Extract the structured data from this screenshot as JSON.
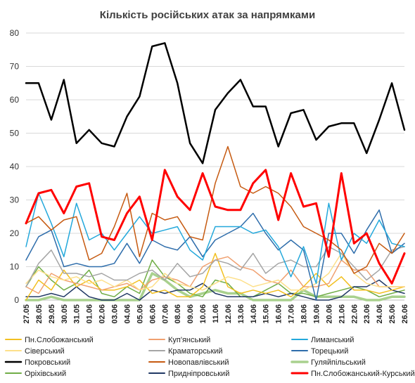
{
  "chart_data": {
    "type": "line",
    "title": "Кількість російських атак за напрямками",
    "ylim": [
      0,
      80
    ],
    "yticks": [
      0,
      10,
      20,
      30,
      40,
      50,
      60,
      70,
      80
    ],
    "grid": true,
    "legend_position": "bottom",
    "x": [
      "27.05",
      "28.05",
      "29.05",
      "30.05",
      "31.05",
      "01.06",
      "02.06",
      "03.06",
      "04.06",
      "05.06",
      "06.06",
      "07.06",
      "08.06",
      "09.06",
      "10.06",
      "11.06",
      "12.06",
      "13.06",
      "14.06",
      "15.06",
      "16.06",
      "17.06",
      "18.06",
      "19.06",
      "20.06",
      "21.06",
      "22.06",
      "23.06",
      "24.06",
      "25.06",
      "26.06"
    ],
    "xtick_labels": [
      "27.05",
      "28.05",
      "29.05",
      "30.05",
      "31.05",
      "01.06",
      "02.06",
      "03.06",
      "04.06",
      "05.06",
      "06.06",
      "07.06",
      "08.06",
      "09.06",
      "10.06",
      "11.06",
      "12.06",
      "13.06",
      "14.06",
      "15.06",
      "16.06",
      "17.06",
      "18.06",
      "19.06",
      "20.06",
      "21.06",
      "22.06",
      "23.06",
      "24.06",
      "25.06",
      "26.06"
    ],
    "series": [
      {
        "name": "Пн.Слобожанський",
        "color": "#f2c021",
        "width": 1.5,
        "values": [
          0,
          6,
          3,
          9,
          4,
          6,
          3,
          3,
          4,
          6,
          2,
          3,
          1,
          1,
          4,
          14,
          4,
          2,
          3,
          2,
          3,
          1,
          4,
          8,
          4,
          7,
          3,
          3,
          2,
          3,
          4
        ]
      },
      {
        "name": "Куп'янський",
        "color": "#f0a070",
        "width": 1.5,
        "values": [
          4,
          2,
          8,
          6,
          5,
          4,
          3,
          4,
          5,
          3,
          6,
          7,
          6,
          4,
          10,
          12,
          13,
          10,
          9,
          6,
          5,
          9,
          4,
          4,
          5,
          12,
          9,
          9,
          4,
          4,
          4
        ]
      },
      {
        "name": "Лиманський",
        "color": "#23a8db",
        "width": 1.5,
        "values": [
          16,
          32,
          23,
          13,
          29,
          18,
          20,
          15,
          20,
          25,
          20,
          21,
          22,
          15,
          12,
          22,
          22,
          22,
          20,
          21,
          16,
          7,
          16,
          5,
          29,
          12,
          20,
          17,
          24,
          17,
          16
        ]
      },
      {
        "name": "Сіверський",
        "color": "#fde08a",
        "width": 1.5,
        "values": [
          5,
          9,
          7,
          6,
          7,
          5,
          6,
          4,
          6,
          3,
          4,
          8,
          5,
          4,
          3,
          5,
          7,
          6,
          4,
          5,
          6,
          3,
          3,
          5,
          8,
          14,
          8,
          5,
          4,
          4,
          4
        ]
      },
      {
        "name": "Краматорський",
        "color": "#a5a5a5",
        "width": 1.5,
        "values": [
          4,
          11,
          15,
          8,
          8,
          7,
          8,
          6,
          6,
          8,
          9,
          6,
          11,
          7,
          8,
          12,
          11,
          9,
          14,
          8,
          11,
          12,
          10,
          10,
          16,
          14,
          10,
          6,
          9,
          15,
          16
        ]
      },
      {
        "name": "Торецький",
        "color": "#2e6dab",
        "width": 1.5,
        "values": [
          12,
          19,
          21,
          10,
          11,
          10,
          10,
          11,
          17,
          11,
          18,
          16,
          15,
          19,
          13,
          18,
          20,
          22,
          26,
          20,
          15,
          18,
          15,
          0,
          20,
          20,
          14,
          21,
          27,
          14,
          17
        ]
      },
      {
        "name": "Покровський",
        "color": "#000000",
        "width": 2.5,
        "values": [
          65,
          65,
          54,
          66,
          47,
          51,
          47,
          46,
          55,
          61,
          76,
          77,
          65,
          47,
          41,
          57,
          62,
          66,
          58,
          58,
          46,
          56,
          57,
          48,
          52,
          53,
          53,
          44,
          54,
          65,
          51
        ]
      },
      {
        "name": "Новопавлівський",
        "color": "#c65a11",
        "width": 1.5,
        "values": [
          23,
          25,
          21,
          24,
          25,
          12,
          14,
          22,
          32,
          13,
          26,
          24,
          25,
          19,
          18,
          35,
          46,
          34,
          32,
          34,
          32,
          28,
          22,
          20,
          18,
          15,
          8,
          10,
          17,
          14,
          20
        ]
      },
      {
        "name": "Гуляйпільський",
        "color": "#a9d18e",
        "width": 3.5,
        "values": [
          0,
          0,
          1,
          0,
          0,
          0,
          0,
          0,
          0,
          0,
          8,
          6,
          3,
          1,
          2,
          3,
          2,
          2,
          0,
          0,
          0,
          0,
          3,
          1,
          1,
          1,
          1,
          0,
          0,
          1,
          1
        ]
      },
      {
        "name": "Оріхівський",
        "color": "#70ad47",
        "width": 1.5,
        "values": [
          4,
          10,
          6,
          3,
          5,
          9,
          2,
          1,
          4,
          2,
          12,
          7,
          5,
          2,
          1,
          6,
          5,
          1,
          1,
          3,
          5,
          2,
          2,
          1,
          2,
          3,
          4,
          3,
          1,
          2,
          3
        ]
      },
      {
        "name": "Придніпровський",
        "color": "#203864",
        "width": 1.5,
        "values": [
          1,
          1,
          2,
          1,
          4,
          1,
          0,
          0,
          2,
          0,
          3,
          2,
          3,
          3,
          5,
          2,
          1,
          1,
          1,
          2,
          1,
          2,
          1,
          0,
          0,
          1,
          4,
          4,
          6,
          3,
          2
        ]
      },
      {
        "name": "Пн.Слобожанський-Курський",
        "color": "#ff0000",
        "width": 3.0,
        "values": [
          23,
          32,
          33,
          26,
          34,
          35,
          19,
          18,
          26,
          31,
          18,
          39,
          31,
          27,
          38,
          28,
          27,
          27,
          35,
          39,
          24,
          38,
          28,
          29,
          13,
          38,
          17,
          20,
          11,
          5,
          14
        ]
      }
    ]
  }
}
